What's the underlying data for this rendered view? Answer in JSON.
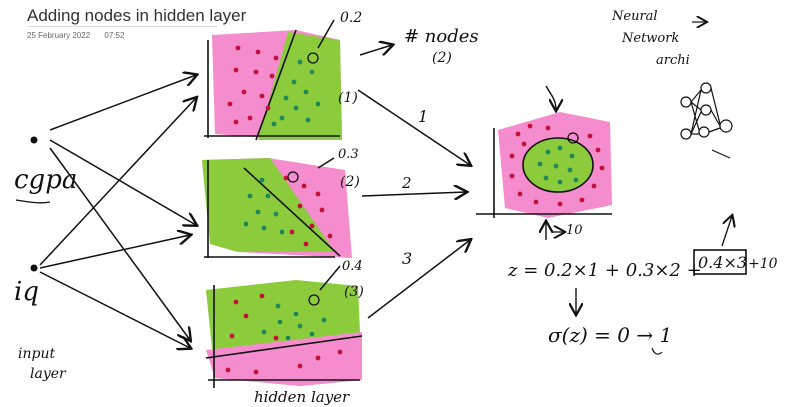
{
  "header": {
    "title": "Adding nodes in hidden layer",
    "date": "25 February 2022",
    "time": "07:52"
  },
  "inputs": {
    "cgpa_label": "cgpa",
    "iq_label": "iq",
    "input_layer_label_1": "input",
    "input_layer_label_2": "layer"
  },
  "hidden": {
    "label": "hidden layer",
    "node1_weight": "0.2",
    "node2_weight": "0.3",
    "node3_weight": "0.4",
    "node1_index": "(1)",
    "node2_index": "(2)",
    "node3_index": "(3)"
  },
  "annotations": {
    "nodes_label": "# nodes",
    "nodes_count": "(2)",
    "arrow1": "1",
    "arrow2": "2",
    "arrow3": "3",
    "bias_label": "10",
    "neural_1": "Neural",
    "neural_2": "Network",
    "neural_3": "archi"
  },
  "equation": {
    "z_expr_1": "z = 0.2×1 + 0.3×2 +",
    "z_boxed": "0.4×3",
    "z_tail": "+10",
    "sigma": "σ(z) = 0 → 1"
  },
  "colors": {
    "pink": "#f48ccd",
    "green": "#8ccc3c",
    "red_dot": "#c2123a",
    "green_dot": "#1f8a58"
  }
}
